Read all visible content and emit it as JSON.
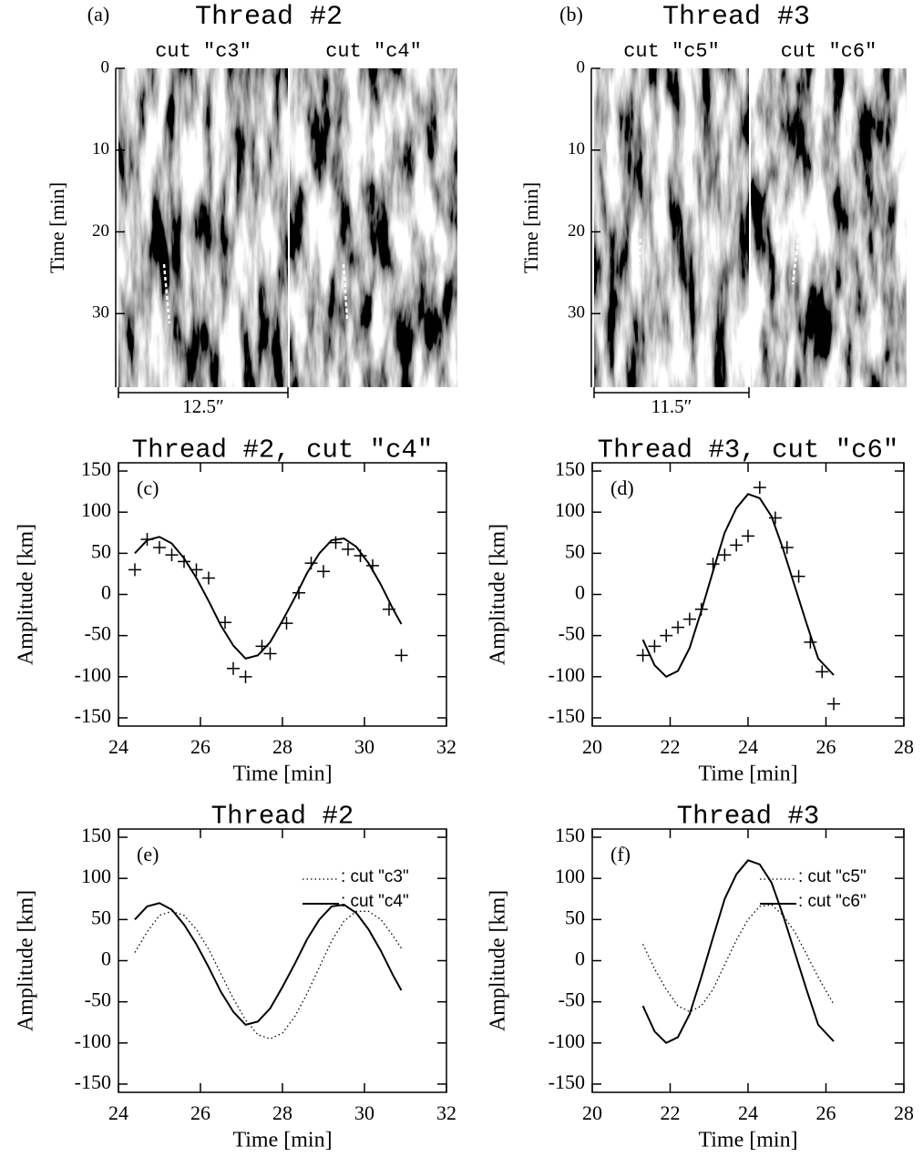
{
  "chart_data": [
    {
      "type": "image",
      "panel_label": "(a)",
      "title": "Thread #2",
      "subtitles": [
        "cut \"c3\"",
        "cut \"c4\""
      ],
      "ylabel": "Time [min]",
      "ylim": [
        0,
        39
      ],
      "yticks": [
        0,
        10,
        20,
        30
      ],
      "y_inverted": true,
      "scale_label": "12.5″"
    },
    {
      "type": "image",
      "panel_label": "(b)",
      "title": "Thread #3",
      "subtitles": [
        "cut \"c5\"",
        "cut \"c6\""
      ],
      "ylabel": "Time [min]",
      "ylim": [
        0,
        39
      ],
      "yticks": [
        0,
        10,
        20,
        30
      ],
      "y_inverted": true,
      "scale_label": "11.5″"
    },
    {
      "type": "line",
      "panel_label": "(c)",
      "title": "Thread #2, cut \"c4\"",
      "xlabel": "Time [min]",
      "ylabel": "Amplitude [km]",
      "xlim": [
        24,
        32
      ],
      "xticks": [
        24,
        26,
        28,
        30,
        32
      ],
      "ylim": [
        -160,
        160
      ],
      "yticks": [
        -150,
        -100,
        -50,
        0,
        50,
        100,
        150
      ],
      "series": [
        {
          "kind": "line",
          "dash": "solid",
          "color": "#000000",
          "x": [
            24.4,
            24.7,
            25.0,
            25.3,
            25.6,
            25.9,
            26.2,
            26.5,
            26.8,
            27.1,
            27.4,
            27.7,
            28.0,
            28.3,
            28.6,
            28.9,
            29.2,
            29.5,
            29.8,
            30.1,
            30.4,
            30.7,
            30.9
          ],
          "values": [
            50,
            66,
            70,
            62,
            44,
            20,
            -8,
            -38,
            -62,
            -78,
            -74,
            -58,
            -32,
            -4,
            26,
            50,
            66,
            68,
            58,
            38,
            12,
            -18,
            -36
          ]
        },
        {
          "kind": "markers",
          "color": "#000000",
          "x": [
            24.4,
            24.7,
            25.0,
            25.3,
            25.6,
            25.9,
            26.2,
            26.6,
            26.8,
            27.1,
            27.5,
            27.7,
            28.1,
            28.4,
            28.7,
            29.0,
            29.3,
            29.6,
            29.9,
            30.2,
            30.6,
            30.9
          ],
          "values": [
            30,
            67,
            57,
            48,
            40,
            30,
            20,
            -34,
            -90,
            -100,
            -63,
            -72,
            -35,
            2,
            38,
            28,
            63,
            55,
            47,
            35,
            -18,
            -74
          ]
        }
      ]
    },
    {
      "type": "line",
      "panel_label": "(d)",
      "title": "Thread #3, cut \"c6\"",
      "xlabel": "Time [min]",
      "ylabel": "Amplitude [km]",
      "xlim": [
        20,
        28
      ],
      "xticks": [
        20,
        22,
        24,
        26,
        28
      ],
      "ylim": [
        -160,
        160
      ],
      "yticks": [
        -150,
        -100,
        -50,
        0,
        50,
        100,
        150
      ],
      "series": [
        {
          "kind": "line",
          "dash": "solid",
          "color": "#000000",
          "x": [
            21.3,
            21.6,
            21.9,
            22.2,
            22.5,
            22.8,
            23.1,
            23.4,
            23.7,
            24.0,
            24.3,
            24.6,
            24.9,
            25.2,
            25.5,
            25.8,
            26.2
          ],
          "values": [
            -55,
            -86,
            -100,
            -93,
            -65,
            -20,
            28,
            75,
            105,
            122,
            117,
            95,
            55,
            10,
            -35,
            -78,
            -98
          ]
        },
        {
          "kind": "markers",
          "color": "#000000",
          "x": [
            21.3,
            21.6,
            21.9,
            22.2,
            22.5,
            22.8,
            23.1,
            23.4,
            23.7,
            24.0,
            24.3,
            24.7,
            25.0,
            25.3,
            25.6,
            25.9,
            26.2
          ],
          "values": [
            -74,
            -63,
            -50,
            -40,
            -30,
            -18,
            37,
            48,
            60,
            71,
            130,
            93,
            57,
            22,
            -58,
            -94,
            -133
          ]
        }
      ]
    },
    {
      "type": "line",
      "panel_label": "(e)",
      "title": "Thread #2",
      "xlabel": "Time [min]",
      "ylabel": "Amplitude [km]",
      "xlim": [
        24,
        32
      ],
      "xticks": [
        24,
        26,
        28,
        30,
        32
      ],
      "ylim": [
        -160,
        160
      ],
      "yticks": [
        -150,
        -100,
        -50,
        0,
        50,
        100,
        150
      ],
      "legend": "upper right",
      "series": [
        {
          "name": ": cut \"c3\"",
          "kind": "line",
          "dash": "dotted",
          "color": "#000000",
          "x": [
            24.4,
            24.7,
            25.0,
            25.3,
            25.6,
            25.9,
            26.2,
            26.5,
            26.8,
            27.1,
            27.4,
            27.7,
            28.0,
            28.3,
            28.6,
            28.9,
            29.2,
            29.5,
            29.8,
            30.1,
            30.4,
            30.7,
            30.9
          ],
          "values": [
            10,
            35,
            55,
            60,
            55,
            38,
            14,
            -16,
            -46,
            -72,
            -90,
            -95,
            -88,
            -68,
            -40,
            -8,
            24,
            48,
            60,
            60,
            50,
            30,
            15
          ]
        },
        {
          "name": ": cut \"c4\"",
          "kind": "line",
          "dash": "solid",
          "color": "#000000",
          "x": [
            24.4,
            24.7,
            25.0,
            25.3,
            25.6,
            25.9,
            26.2,
            26.5,
            26.8,
            27.1,
            27.4,
            27.7,
            28.0,
            28.3,
            28.6,
            28.9,
            29.2,
            29.5,
            29.8,
            30.1,
            30.4,
            30.7,
            30.9
          ],
          "values": [
            50,
            66,
            70,
            62,
            44,
            20,
            -8,
            -38,
            -62,
            -78,
            -74,
            -58,
            -32,
            -4,
            26,
            50,
            66,
            68,
            58,
            38,
            12,
            -18,
            -36
          ]
        }
      ]
    },
    {
      "type": "line",
      "panel_label": "(f)",
      "title": "Thread #3",
      "xlabel": "Time [min]",
      "ylabel": "Amplitude [km]",
      "xlim": [
        20,
        28
      ],
      "xticks": [
        20,
        22,
        24,
        26,
        28
      ],
      "ylim": [
        -160,
        160
      ],
      "yticks": [
        -150,
        -100,
        -50,
        0,
        50,
        100,
        150
      ],
      "legend": "upper right",
      "series": [
        {
          "name": ": cut \"c5\"",
          "kind": "line",
          "dash": "dotted",
          "color": "#000000",
          "x": [
            21.3,
            21.6,
            21.9,
            22.2,
            22.5,
            22.8,
            23.1,
            23.4,
            23.7,
            24.0,
            24.3,
            24.6,
            24.9,
            25.2,
            25.5,
            25.8,
            26.2
          ],
          "values": [
            20,
            -10,
            -35,
            -55,
            -62,
            -55,
            -35,
            -5,
            25,
            50,
            66,
            68,
            55,
            35,
            8,
            -20,
            -53
          ]
        },
        {
          "name": ": cut \"c6\"",
          "kind": "line",
          "dash": "solid",
          "color": "#000000",
          "x": [
            21.3,
            21.6,
            21.9,
            22.2,
            22.5,
            22.8,
            23.1,
            23.4,
            23.7,
            24.0,
            24.3,
            24.6,
            24.9,
            25.2,
            25.5,
            25.8,
            26.2
          ],
          "values": [
            -55,
            -86,
            -100,
            -93,
            -65,
            -20,
            28,
            75,
            105,
            122,
            117,
            95,
            55,
            10,
            -35,
            -78,
            -98
          ]
        }
      ]
    }
  ]
}
